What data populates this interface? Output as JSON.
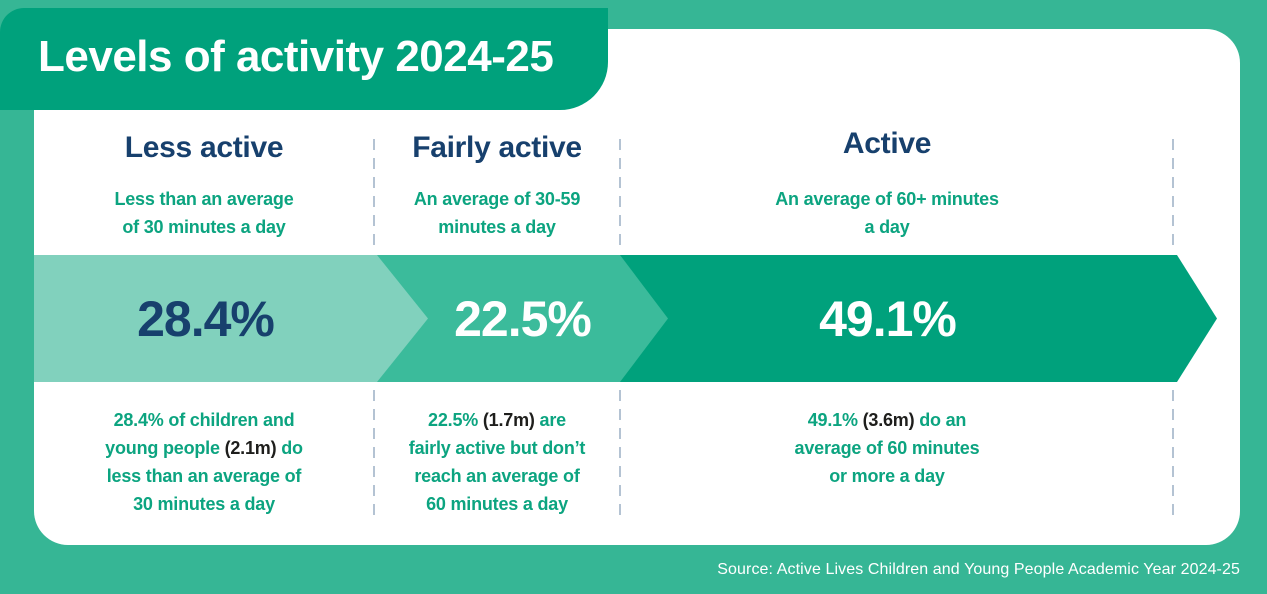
{
  "title": "Levels of activity 2024-25",
  "source": "Source: Active Lives Children and Young People Academic Year 2024-25",
  "columns": [
    {
      "header": "Less active",
      "subtitle": "Less than an average\nof 30 minutes a day",
      "percent": "28.4%",
      "detail": {
        "pre": "28.4% of children and\nyoung people ",
        "highlight": "(2.1m)",
        "post": " do\nless than an average of\n30 minutes a day"
      }
    },
    {
      "header": "Fairly active",
      "subtitle": "An average of 30-59\nminutes a day",
      "percent": "22.5%",
      "detail": {
        "pre": "22.5% ",
        "highlight": "(1.7m)",
        "post": " are\nfairly active but don’t\nreach an average of\n60 minutes a day"
      }
    },
    {
      "header": "Active",
      "subtitle": "An average of 60+ minutes\na day",
      "percent": "49.1%",
      "detail": {
        "pre": "49.1% ",
        "highlight": "(3.6m)",
        "post": " do an\naverage of 60 minutes\nor more a day"
      }
    }
  ],
  "chart_data": {
    "type": "bar",
    "title": "Levels of activity 2024-25",
    "categories": [
      "Less active",
      "Fairly active",
      "Active"
    ],
    "values": [
      28.4,
      22.5,
      49.1
    ],
    "values_millions": [
      2.1,
      1.7,
      3.6
    ],
    "category_definitions": [
      "Less than an average of 30 minutes a day",
      "An average of 30-59 minutes a day",
      "An average of 60+ minutes a day"
    ],
    "unit": "percent of children and young people",
    "legend_position": "none",
    "source": "Source: Active Lives Children and Young People Academic Year 2024-25"
  },
  "colors": {
    "background": "#36b695",
    "card": "#ffffff",
    "banner-green": "#00a17c",
    "segment-light": "#81d1bd",
    "segment-medium": "#3bbb9b",
    "segment-dark": "#00a17c",
    "navy": "#17406d",
    "teal-text": "#0ca480",
    "dark-text": "#1e1e1c",
    "divider": "#b4c3d3"
  }
}
